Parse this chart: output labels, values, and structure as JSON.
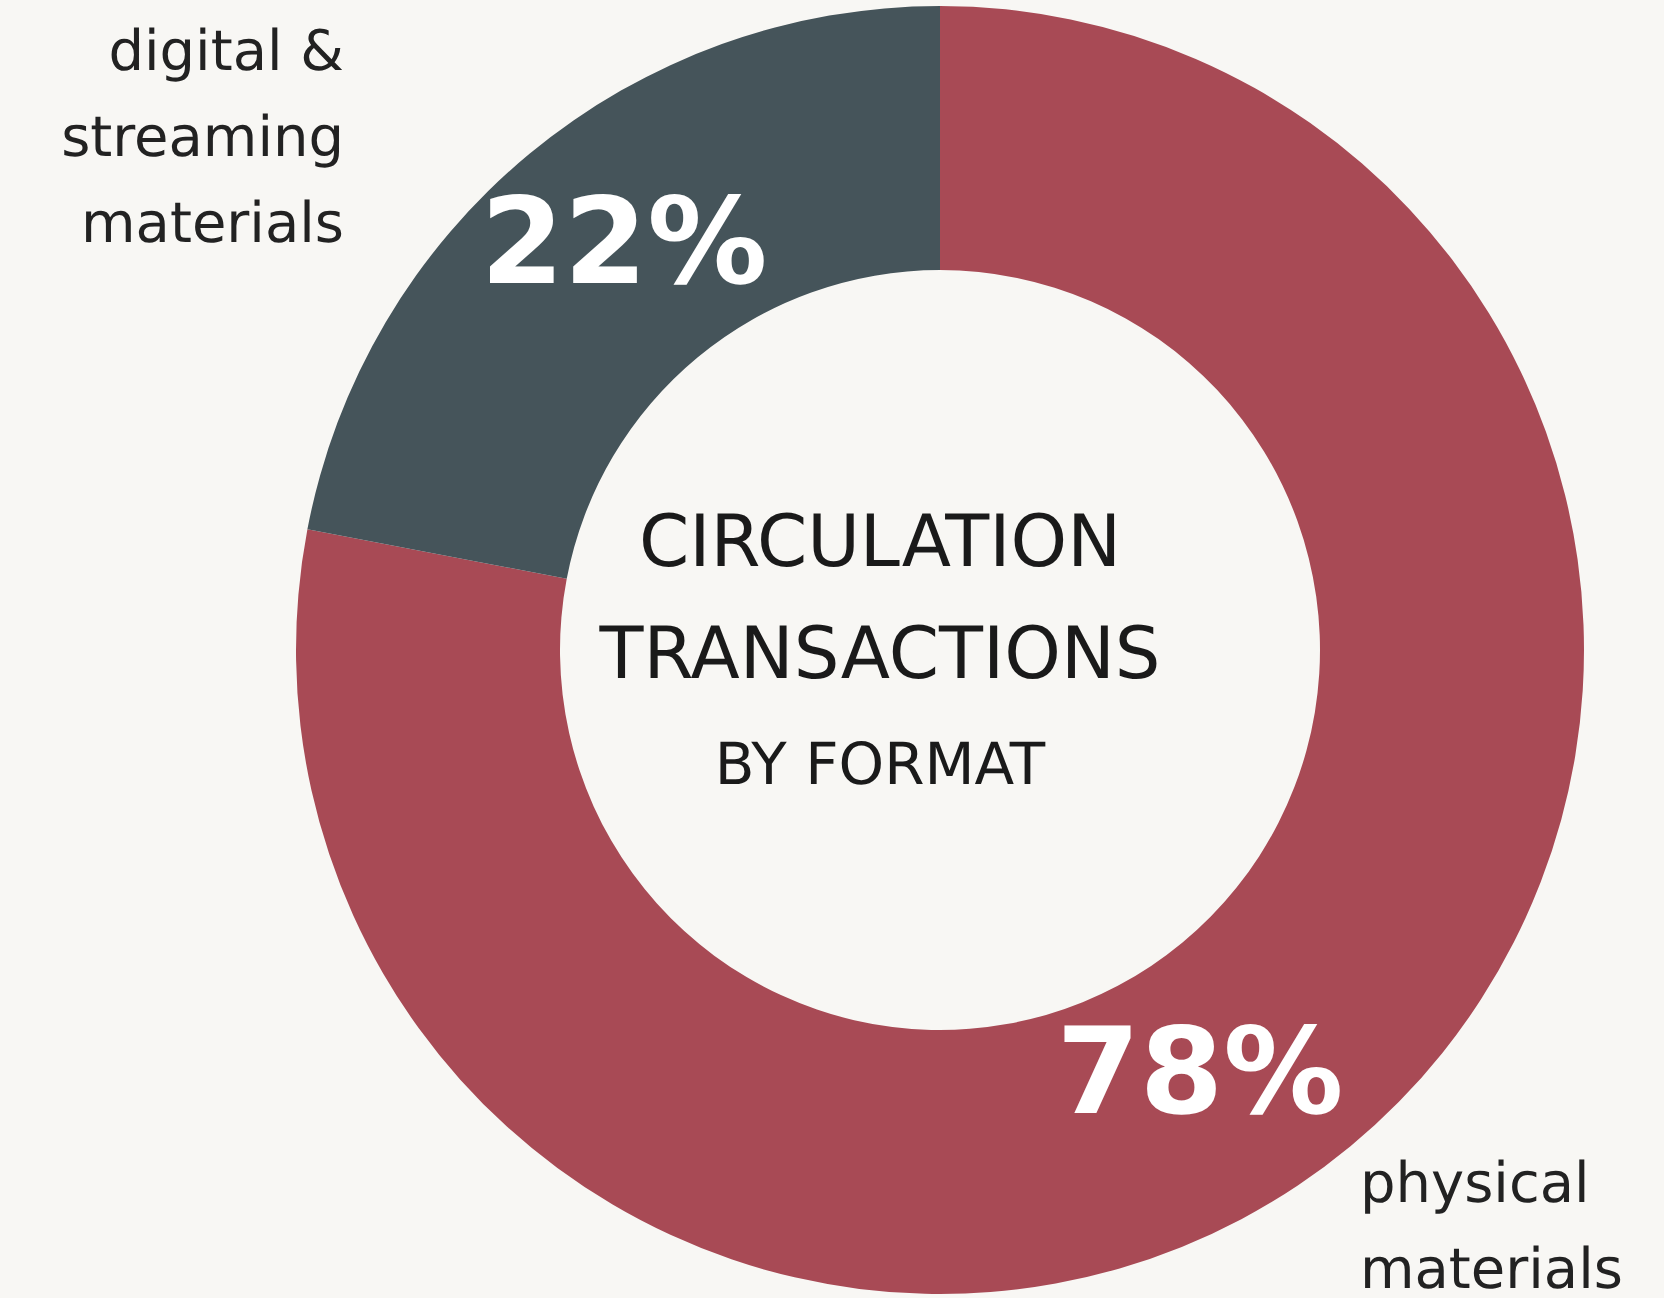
{
  "chart_data": {
    "type": "donut",
    "title": "CIRCULATION TRANSACTIONS BY FORMAT",
    "categories": [
      "physical materials",
      "digital & streaming materials"
    ],
    "values": [
      78,
      22
    ],
    "colors": [
      "#a84a55",
      "#45545a"
    ],
    "value_labels": [
      "78%",
      "22%"
    ]
  }
}
